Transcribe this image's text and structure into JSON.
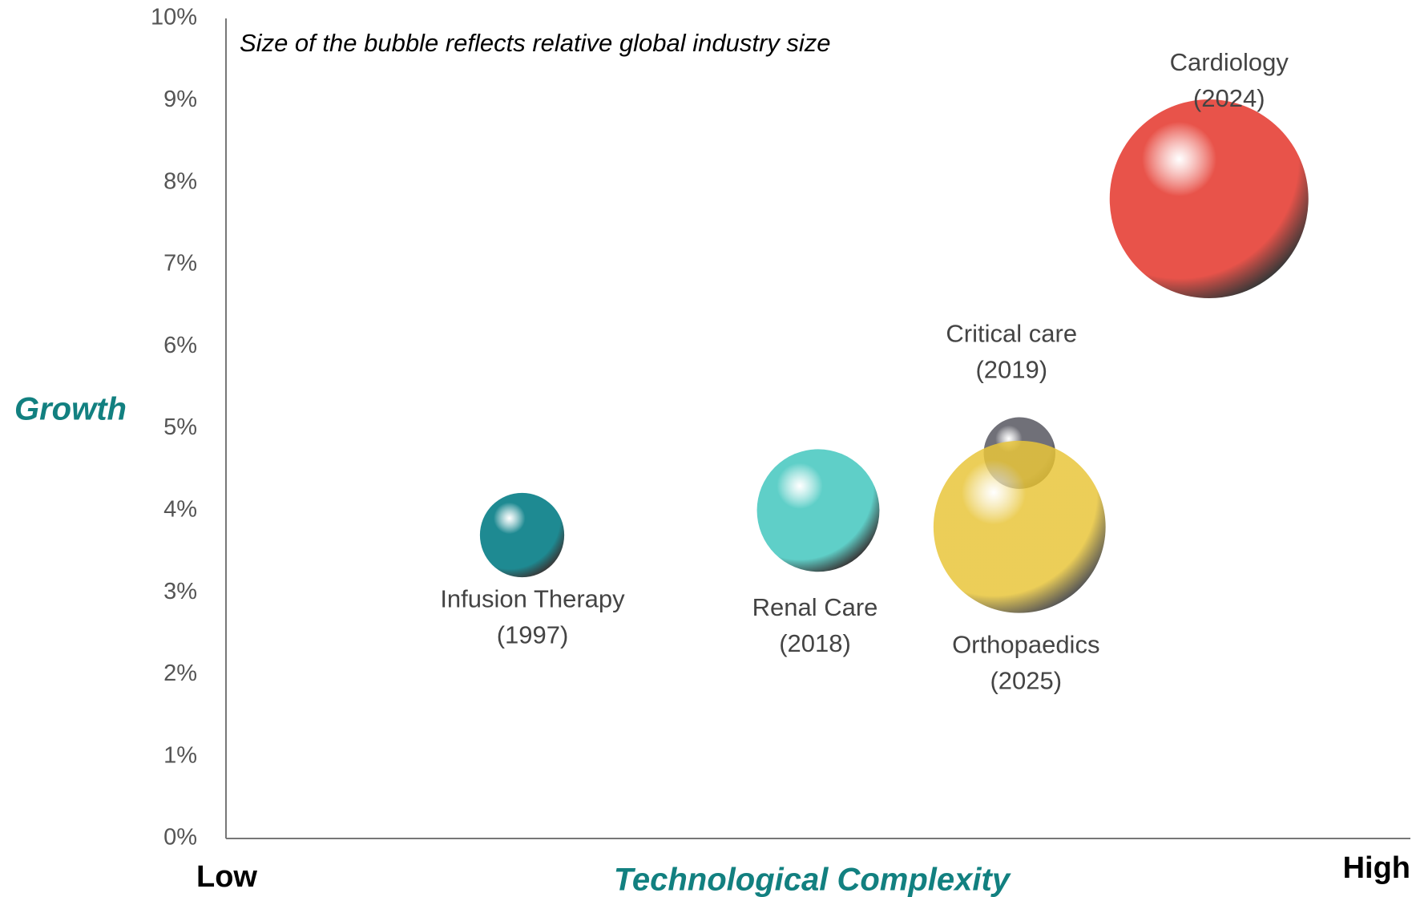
{
  "chart_data": {
    "type": "bubble",
    "annotation": "Size of the bubble reflects relative global industry size",
    "y_label": "Growth",
    "x_label": "Technological Complexity",
    "x_low_label": "Low",
    "x_high_label": "High",
    "xlim": [
      0,
      100
    ],
    "ylim": [
      0,
      10
    ],
    "yticks": [
      {
        "value": 0,
        "label": "0%"
      },
      {
        "value": 1,
        "label": "1%"
      },
      {
        "value": 2,
        "label": "2%"
      },
      {
        "value": 3,
        "label": "3%"
      },
      {
        "value": 4,
        "label": "4%"
      },
      {
        "value": 5,
        "label": "5%"
      },
      {
        "value": 6,
        "label": "6%"
      },
      {
        "value": 7,
        "label": "7%"
      },
      {
        "value": 8,
        "label": "8%"
      },
      {
        "value": 9,
        "label": "9%"
      },
      {
        "value": 10,
        "label": "10%"
      }
    ],
    "grid": false,
    "series": [
      {
        "name": "Infusion Therapy",
        "year": "(1997)",
        "color": "#1e8a92",
        "x": 25,
        "y": 3.7,
        "size": 18
      },
      {
        "name": "Renal Care",
        "year": "(2018)",
        "color": "#5fcfc8",
        "x": 50,
        "y": 4.0,
        "size": 38
      },
      {
        "name": "Critical care",
        "year": "(2019)",
        "color": "#707078",
        "x": 67,
        "y": 4.7,
        "size": 13
      },
      {
        "name": "Orthopaedics",
        "year": "(2025)",
        "color": "#e8c53a",
        "x": 67,
        "y": 3.8,
        "size": 75
      },
      {
        "name": "Cardiology",
        "year": "(2024)",
        "color": "#e8534a",
        "x": 83,
        "y": 7.8,
        "size": 100
      }
    ]
  }
}
